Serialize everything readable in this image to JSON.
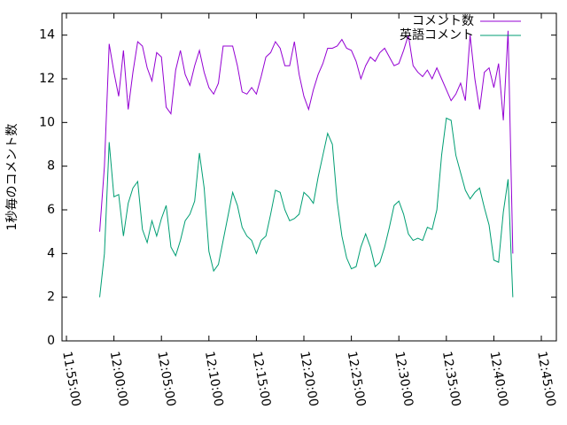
{
  "chart_data": {
    "type": "line",
    "ylabel": "1秒毎のコメント数",
    "x": [
      "11:58:30",
      "11:59:00",
      "11:59:30",
      "12:00:00",
      "12:00:30",
      "12:01:00",
      "12:01:30",
      "12:02:00",
      "12:02:30",
      "12:03:00",
      "12:03:30",
      "12:04:00",
      "12:04:30",
      "12:05:00",
      "12:05:30",
      "12:06:00",
      "12:06:30",
      "12:07:00",
      "12:07:30",
      "12:08:00",
      "12:08:30",
      "12:09:00",
      "12:09:30",
      "12:10:00",
      "12:10:30",
      "12:11:00",
      "12:11:30",
      "12:12:00",
      "12:12:30",
      "12:13:00",
      "12:13:30",
      "12:14:00",
      "12:14:30",
      "12:15:00",
      "12:15:30",
      "12:16:00",
      "12:16:30",
      "12:17:00",
      "12:17:30",
      "12:18:00",
      "12:18:30",
      "12:19:00",
      "12:19:30",
      "12:20:00",
      "12:20:30",
      "12:21:00",
      "12:21:30",
      "12:22:00",
      "12:22:30",
      "12:23:00",
      "12:23:30",
      "12:24:00",
      "12:24:30",
      "12:25:00",
      "12:25:30",
      "12:26:00",
      "12:26:30",
      "12:27:00",
      "12:27:30",
      "12:28:00",
      "12:28:30",
      "12:29:00",
      "12:29:30",
      "12:30:00",
      "12:30:30",
      "12:31:00",
      "12:31:30",
      "12:32:00",
      "12:32:30",
      "12:33:00",
      "12:33:30",
      "12:34:00",
      "12:34:30",
      "12:35:00",
      "12:35:30",
      "12:36:00",
      "12:36:30",
      "12:37:00",
      "12:37:30",
      "12:38:00",
      "12:38:30",
      "12:39:00",
      "12:39:30",
      "12:40:00",
      "12:40:30",
      "12:41:00",
      "12:41:30",
      "12:42:00"
    ],
    "series": [
      {
        "name": "コメント数",
        "color": "#9400d3",
        "values": [
          5.0,
          8.0,
          13.6,
          12.3,
          11.2,
          13.3,
          10.6,
          12.3,
          13.7,
          13.5,
          12.5,
          11.9,
          13.2,
          13.0,
          10.7,
          10.4,
          12.4,
          13.3,
          12.2,
          11.7,
          12.6,
          13.3,
          12.3,
          11.6,
          11.3,
          11.8,
          13.5,
          13.5,
          13.5,
          12.6,
          11.4,
          11.3,
          11.6,
          11.3,
          12.1,
          13.0,
          13.2,
          13.7,
          13.4,
          12.6,
          12.6,
          13.7,
          12.2,
          11.2,
          10.6,
          11.5,
          12.2,
          12.7,
          13.4,
          13.4,
          13.5,
          13.8,
          13.4,
          13.3,
          12.8,
          12.0,
          12.6,
          13.0,
          12.8,
          13.2,
          13.4,
          13.0,
          12.6,
          12.7,
          13.3,
          14.0,
          12.6,
          12.3,
          12.1,
          12.4,
          12.0,
          12.5,
          12.0,
          11.5,
          11.0,
          11.3,
          11.8,
          11.0,
          14.0,
          12.0,
          10.6,
          12.3,
          12.5,
          11.6,
          12.7,
          10.1,
          14.2,
          4.0
        ]
      },
      {
        "name": "英語コメント",
        "color": "#009e73",
        "values": [
          2.0,
          4.0,
          9.1,
          6.6,
          6.7,
          4.8,
          6.3,
          7.0,
          7.3,
          5.1,
          4.5,
          5.5,
          4.8,
          5.6,
          6.2,
          4.3,
          3.9,
          4.6,
          5.5,
          5.8,
          6.4,
          8.6,
          7.0,
          4.1,
          3.2,
          3.5,
          4.6,
          5.7,
          6.8,
          6.2,
          5.2,
          4.8,
          4.6,
          4.0,
          4.6,
          4.8,
          5.8,
          6.9,
          6.8,
          6.0,
          5.5,
          5.6,
          5.8,
          6.8,
          6.6,
          6.3,
          7.5,
          8.5,
          9.5,
          9.0,
          6.4,
          4.8,
          3.8,
          3.3,
          3.4,
          4.3,
          4.9,
          4.3,
          3.4,
          3.6,
          4.3,
          5.2,
          6.2,
          6.4,
          5.8,
          4.9,
          4.6,
          4.7,
          4.6,
          5.2,
          5.1,
          6.0,
          8.5,
          10.2,
          10.1,
          8.5,
          7.7,
          6.9,
          6.5,
          6.8,
          7.0,
          6.1,
          5.3,
          3.7,
          3.6,
          5.9,
          7.4,
          2.0
        ]
      }
    ],
    "xlim": [
      "11:54:32",
      "12:46:35"
    ],
    "xticks": [
      "11:55:00",
      "12:00:00",
      "12:05:00",
      "12:10:00",
      "12:15:00",
      "12:20:00",
      "12:25:00",
      "12:30:00",
      "12:35:00",
      "12:40:00",
      "12:45:00"
    ],
    "ylim": [
      0,
      15
    ],
    "yticks": [
      0,
      2,
      4,
      6,
      8,
      10,
      12,
      14
    ],
    "legend": "top-right"
  }
}
